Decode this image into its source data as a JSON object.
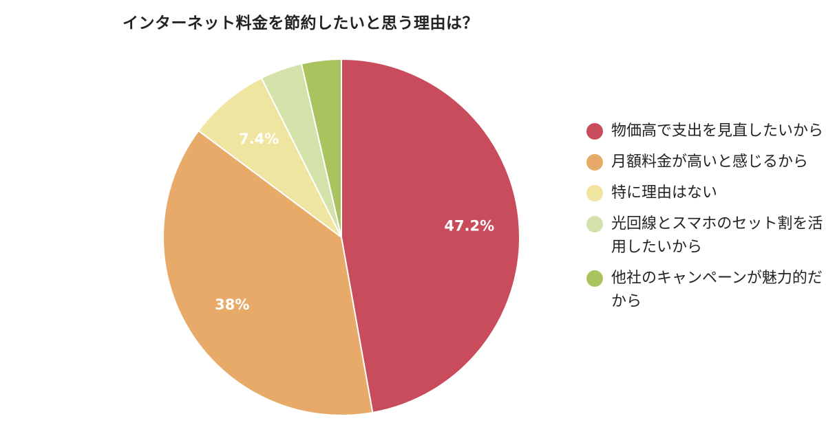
{
  "chart_data": {
    "type": "pie",
    "title": "インターネット料金を節約したいと思う理由は？",
    "legend_position": "right",
    "slices": [
      {
        "name": "物価高で支出を見直したいから",
        "value": 47.2,
        "label": "47.2%",
        "color": "#c94c5c"
      },
      {
        "name": "月額料金が高いと感じるから",
        "value": 38.0,
        "label": "38%",
        "color": "#e8aa68"
      },
      {
        "name": "特に理由はない",
        "value": 7.4,
        "label": "7.4%",
        "color": "#efe5a0"
      },
      {
        "name": "光回線とスマホのセット割を活用したいから",
        "value": 3.8,
        "label": "",
        "color": "#d3e2ab"
      },
      {
        "name": "他社のキャンペーンが魅力的だから",
        "value": 3.6,
        "label": "",
        "color": "#a9c45e"
      }
    ]
  }
}
